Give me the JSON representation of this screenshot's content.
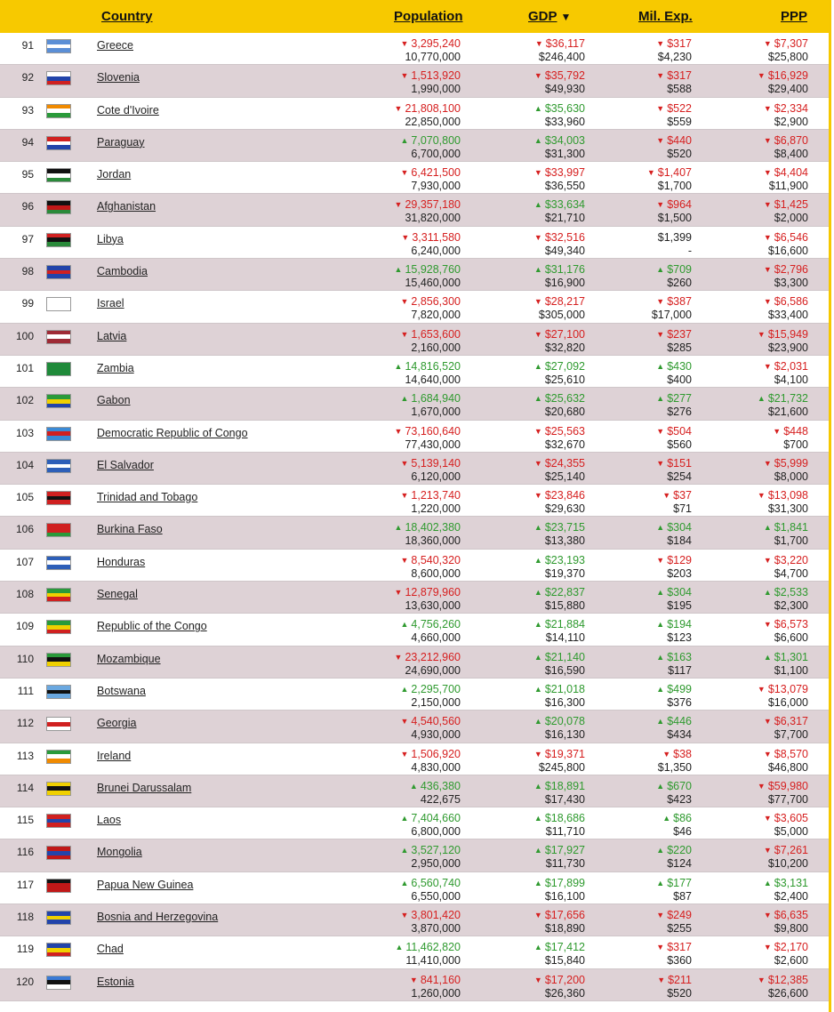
{
  "header": {
    "country": "Country",
    "population": "Population",
    "gdp": "GDP",
    "gdp_sort_icon": "sort-down-icon",
    "mil": "Mil. Exp.",
    "ppp": "PPP"
  },
  "colors": {
    "header_bg": "#f7c900",
    "up": "#2f9a2f",
    "down": "#d62020",
    "row_alt": "#ded2d6"
  },
  "rows": [
    {
      "rank": "91",
      "country": "Greece",
      "flag": [
        "#5b8fd6",
        "#ffffff",
        "#5b8fd6"
      ],
      "pop_dir": "down",
      "pop_top": "3,295,240",
      "pop_bot": "10,770,000",
      "gdp_dir": "down",
      "gdp_top": "$36,117",
      "gdp_bot": "$246,400",
      "mil_dir": "down",
      "mil_top": "$317",
      "mil_bot": "$4,230",
      "ppp_dir": "down",
      "ppp_top": "$7,307",
      "ppp_bot": "$25,800"
    },
    {
      "rank": "92",
      "country": "Slovenia",
      "flag": [
        "#ffffff",
        "#2244aa",
        "#d02020"
      ],
      "pop_dir": "down",
      "pop_top": "1,513,920",
      "pop_bot": "1,990,000",
      "gdp_dir": "down",
      "gdp_top": "$35,792",
      "gdp_bot": "$49,930",
      "mil_dir": "down",
      "mil_top": "$317",
      "mil_bot": "$588",
      "ppp_dir": "down",
      "ppp_top": "$16,929",
      "ppp_bot": "$29,400"
    },
    {
      "rank": "93",
      "country": "Cote d'Ivoire",
      "flag": [
        "#f08a00",
        "#ffffff",
        "#2a9a3a"
      ],
      "pop_dir": "down",
      "pop_top": "21,808,100",
      "pop_bot": "22,850,000",
      "gdp_dir": "up",
      "gdp_top": "$35,630",
      "gdp_bot": "$33,960",
      "mil_dir": "down",
      "mil_top": "$522",
      "mil_bot": "$559",
      "ppp_dir": "down",
      "ppp_top": "$2,334",
      "ppp_bot": "$2,900"
    },
    {
      "rank": "94",
      "country": "Paraguay",
      "flag": [
        "#d02020",
        "#ffffff",
        "#2244aa"
      ],
      "pop_dir": "up",
      "pop_top": "7,070,800",
      "pop_bot": "6,700,000",
      "gdp_dir": "up",
      "gdp_top": "$34,003",
      "gdp_bot": "$31,300",
      "mil_dir": "down",
      "mil_top": "$440",
      "mil_bot": "$520",
      "ppp_dir": "down",
      "ppp_top": "$6,870",
      "ppp_bot": "$8,400"
    },
    {
      "rank": "95",
      "country": "Jordan",
      "flag": [
        "#111111",
        "#ffffff",
        "#2a8a3a"
      ],
      "pop_dir": "down",
      "pop_top": "6,421,500",
      "pop_bot": "7,930,000",
      "gdp_dir": "down",
      "gdp_top": "$33,997",
      "gdp_bot": "$36,550",
      "mil_dir": "down",
      "mil_top": "$1,407",
      "mil_bot": "$1,700",
      "ppp_dir": "down",
      "ppp_top": "$4,404",
      "ppp_bot": "$11,900"
    },
    {
      "rank": "96",
      "country": "Afghanistan",
      "flag": [
        "#111111",
        "#c01818",
        "#2a8a3a"
      ],
      "pop_dir": "down",
      "pop_top": "29,357,180",
      "pop_bot": "31,820,000",
      "gdp_dir": "up",
      "gdp_top": "$33,634",
      "gdp_bot": "$21,710",
      "mil_dir": "down",
      "mil_top": "$964",
      "mil_bot": "$1,500",
      "ppp_dir": "down",
      "ppp_top": "$1,425",
      "ppp_bot": "$2,000"
    },
    {
      "rank": "97",
      "country": "Libya",
      "flag": [
        "#d02020",
        "#111111",
        "#2a8a3a"
      ],
      "pop_dir": "down",
      "pop_top": "3,311,580",
      "pop_bot": "6,240,000",
      "gdp_dir": "down",
      "gdp_top": "$32,516",
      "gdp_bot": "$49,340",
      "mil_dir": "none",
      "mil_top": "$1,399",
      "mil_bot": "-",
      "ppp_dir": "down",
      "ppp_top": "$6,546",
      "ppp_bot": "$16,600"
    },
    {
      "rank": "98",
      "country": "Cambodia",
      "flag": [
        "#2244aa",
        "#d02020",
        "#2244aa"
      ],
      "pop_dir": "up",
      "pop_top": "15,928,760",
      "pop_bot": "15,460,000",
      "gdp_dir": "up",
      "gdp_top": "$31,176",
      "gdp_bot": "$16,900",
      "mil_dir": "up",
      "mil_top": "$709",
      "mil_bot": "$260",
      "ppp_dir": "down",
      "ppp_top": "$2,796",
      "ppp_bot": "$3,300"
    },
    {
      "rank": "99",
      "country": "Israel",
      "flag": [
        "#ffffff",
        "#ffffff",
        "#ffffff"
      ],
      "pop_dir": "down",
      "pop_top": "2,856,300",
      "pop_bot": "7,820,000",
      "gdp_dir": "down",
      "gdp_top": "$28,217",
      "gdp_bot": "$305,000",
      "mil_dir": "down",
      "mil_top": "$387",
      "mil_bot": "$17,000",
      "ppp_dir": "down",
      "ppp_top": "$6,586",
      "ppp_bot": "$33,400"
    },
    {
      "rank": "100",
      "country": "Latvia",
      "flag": [
        "#9e2a35",
        "#ffffff",
        "#9e2a35"
      ],
      "pop_dir": "down",
      "pop_top": "1,653,600",
      "pop_bot": "2,160,000",
      "gdp_dir": "down",
      "gdp_top": "$27,100",
      "gdp_bot": "$32,820",
      "mil_dir": "down",
      "mil_top": "$237",
      "mil_bot": "$285",
      "ppp_dir": "down",
      "ppp_top": "$15,949",
      "ppp_bot": "$23,900"
    },
    {
      "rank": "101",
      "country": "Zambia",
      "flag": [
        "#1f8a3a",
        "#1f8a3a",
        "#1f8a3a"
      ],
      "pop_dir": "up",
      "pop_top": "14,816,520",
      "pop_bot": "14,640,000",
      "gdp_dir": "up",
      "gdp_top": "$27,092",
      "gdp_bot": "$25,610",
      "mil_dir": "up",
      "mil_top": "$430",
      "mil_bot": "$400",
      "ppp_dir": "down",
      "ppp_top": "$2,031",
      "ppp_bot": "$4,100"
    },
    {
      "rank": "102",
      "country": "Gabon",
      "flag": [
        "#2a9a3a",
        "#f0d000",
        "#2244aa"
      ],
      "pop_dir": "up",
      "pop_top": "1,684,940",
      "pop_bot": "1,670,000",
      "gdp_dir": "up",
      "gdp_top": "$25,632",
      "gdp_bot": "$20,680",
      "mil_dir": "up",
      "mil_top": "$277",
      "mil_bot": "$276",
      "ppp_dir": "up",
      "ppp_top": "$21,732",
      "ppp_bot": "$21,600"
    },
    {
      "rank": "103",
      "country": "Democratic Republic of Congo",
      "flag": [
        "#3a8ad6",
        "#d02020",
        "#3a8ad6"
      ],
      "pop_dir": "down",
      "pop_top": "73,160,640",
      "pop_bot": "77,430,000",
      "gdp_dir": "down",
      "gdp_top": "$25,563",
      "gdp_bot": "$32,670",
      "mil_dir": "down",
      "mil_top": "$504",
      "mil_bot": "$560",
      "ppp_dir": "down",
      "ppp_top": "$448",
      "ppp_bot": "$700"
    },
    {
      "rank": "104",
      "country": "El Salvador",
      "flag": [
        "#2d5fb8",
        "#ffffff",
        "#2d5fb8"
      ],
      "pop_dir": "down",
      "pop_top": "5,139,140",
      "pop_bot": "6,120,000",
      "gdp_dir": "down",
      "gdp_top": "$24,355",
      "gdp_bot": "$25,140",
      "mil_dir": "down",
      "mil_top": "$151",
      "mil_bot": "$254",
      "ppp_dir": "down",
      "ppp_top": "$5,999",
      "ppp_bot": "$8,000"
    },
    {
      "rank": "105",
      "country": "Trinidad and Tobago",
      "flag": [
        "#d02020",
        "#111111",
        "#d02020"
      ],
      "pop_dir": "down",
      "pop_top": "1,213,740",
      "pop_bot": "1,220,000",
      "gdp_dir": "down",
      "gdp_top": "$23,846",
      "gdp_bot": "$29,630",
      "mil_dir": "down",
      "mil_top": "$37",
      "mil_bot": "$71",
      "ppp_dir": "down",
      "ppp_top": "$13,098",
      "ppp_bot": "$31,300"
    },
    {
      "rank": "106",
      "country": "Burkina Faso",
      "flag": [
        "#d02020",
        "#d02020",
        "#2a9a3a"
      ],
      "pop_dir": "up",
      "pop_top": "18,402,380",
      "pop_bot": "18,360,000",
      "gdp_dir": "up",
      "gdp_top": "$23,715",
      "gdp_bot": "$13,380",
      "mil_dir": "up",
      "mil_top": "$304",
      "mil_bot": "$184",
      "ppp_dir": "up",
      "ppp_top": "$1,841",
      "ppp_bot": "$1,700"
    },
    {
      "rank": "107",
      "country": "Honduras",
      "flag": [
        "#2d5fb8",
        "#ffffff",
        "#2d5fb8"
      ],
      "pop_dir": "down",
      "pop_top": "8,540,320",
      "pop_bot": "8,600,000",
      "gdp_dir": "up",
      "gdp_top": "$23,193",
      "gdp_bot": "$19,370",
      "mil_dir": "down",
      "mil_top": "$129",
      "mil_bot": "$203",
      "ppp_dir": "down",
      "ppp_top": "$3,220",
      "ppp_bot": "$4,700"
    },
    {
      "rank": "108",
      "country": "Senegal",
      "flag": [
        "#2a9a3a",
        "#f0d000",
        "#d02020"
      ],
      "pop_dir": "down",
      "pop_top": "12,879,960",
      "pop_bot": "13,630,000",
      "gdp_dir": "up",
      "gdp_top": "$22,837",
      "gdp_bot": "$15,880",
      "mil_dir": "up",
      "mil_top": "$304",
      "mil_bot": "$195",
      "ppp_dir": "up",
      "ppp_top": "$2,533",
      "ppp_bot": "$2,300"
    },
    {
      "rank": "109",
      "country": "Republic of the Congo",
      "flag": [
        "#2a9a3a",
        "#f0d000",
        "#d02020"
      ],
      "pop_dir": "up",
      "pop_top": "4,756,260",
      "pop_bot": "4,660,000",
      "gdp_dir": "up",
      "gdp_top": "$21,884",
      "gdp_bot": "$14,110",
      "mil_dir": "up",
      "mil_top": "$194",
      "mil_bot": "$123",
      "ppp_dir": "down",
      "ppp_top": "$6,573",
      "ppp_bot": "$6,600"
    },
    {
      "rank": "110",
      "country": "Mozambique",
      "flag": [
        "#2a9a3a",
        "#111111",
        "#f0d000"
      ],
      "pop_dir": "down",
      "pop_top": "23,212,960",
      "pop_bot": "24,690,000",
      "gdp_dir": "up",
      "gdp_top": "$21,140",
      "gdp_bot": "$16,590",
      "mil_dir": "up",
      "mil_top": "$163",
      "mil_bot": "$117",
      "ppp_dir": "up",
      "ppp_top": "$1,301",
      "ppp_bot": "$1,100"
    },
    {
      "rank": "111",
      "country": "Botswana",
      "flag": [
        "#6aa8e0",
        "#111111",
        "#6aa8e0"
      ],
      "pop_dir": "up",
      "pop_top": "2,295,700",
      "pop_bot": "2,150,000",
      "gdp_dir": "up",
      "gdp_top": "$21,018",
      "gdp_bot": "$16,300",
      "mil_dir": "up",
      "mil_top": "$499",
      "mil_bot": "$376",
      "ppp_dir": "down",
      "ppp_top": "$13,079",
      "ppp_bot": "$16,000"
    },
    {
      "rank": "112",
      "country": "Georgia",
      "flag": [
        "#ffffff",
        "#d02020",
        "#ffffff"
      ],
      "pop_dir": "down",
      "pop_top": "4,540,560",
      "pop_bot": "4,930,000",
      "gdp_dir": "up",
      "gdp_top": "$20,078",
      "gdp_bot": "$16,130",
      "mil_dir": "up",
      "mil_top": "$446",
      "mil_bot": "$434",
      "ppp_dir": "down",
      "ppp_top": "$6,317",
      "ppp_bot": "$7,700"
    },
    {
      "rank": "113",
      "country": "Ireland",
      "flag": [
        "#2a9a3a",
        "#ffffff",
        "#f08a00"
      ],
      "pop_dir": "down",
      "pop_top": "1,506,920",
      "pop_bot": "4,830,000",
      "gdp_dir": "down",
      "gdp_top": "$19,371",
      "gdp_bot": "$245,800",
      "mil_dir": "down",
      "mil_top": "$38",
      "mil_bot": "$1,350",
      "ppp_dir": "down",
      "ppp_top": "$8,570",
      "ppp_bot": "$46,800"
    },
    {
      "rank": "114",
      "country": "Brunei Darussalam",
      "flag": [
        "#f0d000",
        "#111111",
        "#f0d000"
      ],
      "pop_dir": "up",
      "pop_top": "436,380",
      "pop_bot": "422,675",
      "gdp_dir": "up",
      "gdp_top": "$18,891",
      "gdp_bot": "$17,430",
      "mil_dir": "up",
      "mil_top": "$670",
      "mil_bot": "$423",
      "ppp_dir": "down",
      "ppp_top": "$59,980",
      "ppp_bot": "$77,700"
    },
    {
      "rank": "115",
      "country": "Laos",
      "flag": [
        "#d02020",
        "#2244aa",
        "#d02020"
      ],
      "pop_dir": "up",
      "pop_top": "7,404,660",
      "pop_bot": "6,800,000",
      "gdp_dir": "up",
      "gdp_top": "$18,686",
      "gdp_bot": "$11,710",
      "mil_dir": "up",
      "mil_top": "$86",
      "mil_bot": "$46",
      "ppp_dir": "down",
      "ppp_top": "$3,605",
      "ppp_bot": "$5,000"
    },
    {
      "rank": "116",
      "country": "Mongolia",
      "flag": [
        "#c01818",
        "#2244aa",
        "#c01818"
      ],
      "pop_dir": "up",
      "pop_top": "3,527,120",
      "pop_bot": "2,950,000",
      "gdp_dir": "up",
      "gdp_top": "$17,927",
      "gdp_bot": "$11,730",
      "mil_dir": "up",
      "mil_top": "$220",
      "mil_bot": "$124",
      "ppp_dir": "down",
      "ppp_top": "$7,261",
      "ppp_bot": "$10,200"
    },
    {
      "rank": "117",
      "country": "Papua New Guinea",
      "flag": [
        "#111111",
        "#c01818",
        "#c01818"
      ],
      "pop_dir": "up",
      "pop_top": "6,560,740",
      "pop_bot": "6,550,000",
      "gdp_dir": "up",
      "gdp_top": "$17,899",
      "gdp_bot": "$16,100",
      "mil_dir": "up",
      "mil_top": "$177",
      "mil_bot": "$87",
      "ppp_dir": "up",
      "ppp_top": "$3,131",
      "ppp_bot": "$2,400"
    },
    {
      "rank": "118",
      "country": "Bosnia and Herzegovina",
      "flag": [
        "#2244aa",
        "#f0d000",
        "#2244aa"
      ],
      "pop_dir": "down",
      "pop_top": "3,801,420",
      "pop_bot": "3,870,000",
      "gdp_dir": "down",
      "gdp_top": "$17,656",
      "gdp_bot": "$18,890",
      "mil_dir": "down",
      "mil_top": "$249",
      "mil_bot": "$255",
      "ppp_dir": "down",
      "ppp_top": "$6,635",
      "ppp_bot": "$9,800"
    },
    {
      "rank": "119",
      "country": "Chad",
      "flag": [
        "#2244aa",
        "#f0d000",
        "#d02020"
      ],
      "pop_dir": "up",
      "pop_top": "11,462,820",
      "pop_bot": "11,410,000",
      "gdp_dir": "up",
      "gdp_top": "$17,412",
      "gdp_bot": "$15,840",
      "mil_dir": "down",
      "mil_top": "$317",
      "mil_bot": "$360",
      "ppp_dir": "down",
      "ppp_top": "$2,170",
      "ppp_bot": "$2,600"
    },
    {
      "rank": "120",
      "country": "Estonia",
      "flag": [
        "#3a7ad6",
        "#111111",
        "#ffffff"
      ],
      "pop_dir": "down",
      "pop_top": "841,160",
      "pop_bot": "1,260,000",
      "gdp_dir": "down",
      "gdp_top": "$17,200",
      "gdp_bot": "$26,360",
      "mil_dir": "down",
      "mil_top": "$211",
      "mil_bot": "$520",
      "ppp_dir": "down",
      "ppp_top": "$12,385",
      "ppp_bot": "$26,600"
    }
  ]
}
